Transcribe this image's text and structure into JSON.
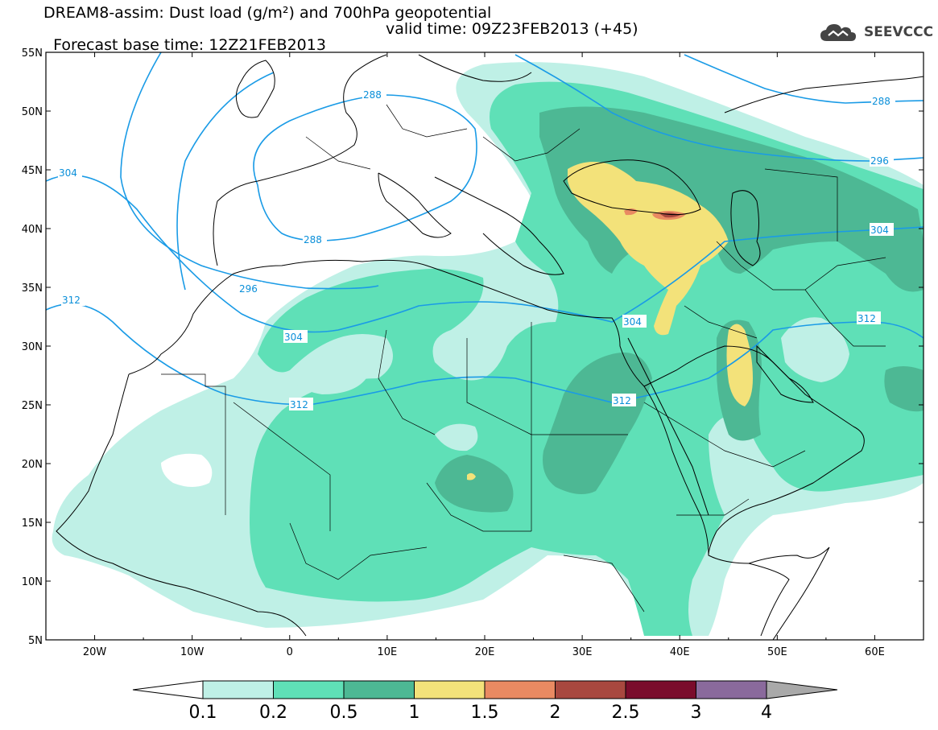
{
  "title": {
    "line1": "DREAM8-assim: Dust load (g/m²) and 700hPa geopotential",
    "line2_left": "Forecast base time: 12Z21FEB2013",
    "line2_right": "valid time: 09Z23FEB2013 (+45)"
  },
  "logo": {
    "text": "SEEVCCC",
    "icon": "cloud-icon"
  },
  "map": {
    "lon_range": [
      -25,
      65
    ],
    "lat_range": [
      5,
      55
    ],
    "lat_ticks": [
      "5N",
      "10N",
      "15N",
      "20N",
      "25N",
      "30N",
      "35N",
      "40N",
      "45N",
      "50N",
      "55N"
    ],
    "lon_ticks": [
      "20W",
      "10W",
      "0",
      "10E",
      "20E",
      "30E",
      "40E",
      "50E",
      "60E"
    ]
  },
  "contours": {
    "color": "#1a9be6",
    "labels": [
      "288",
      "288",
      "288",
      "296",
      "296",
      "304",
      "304",
      "304",
      "304",
      "312",
      "312",
      "312",
      "312"
    ]
  },
  "colorbar": {
    "colors": [
      "#bff0e6",
      "#5fe0b7",
      "#4db894",
      "#f3e27a",
      "#e98a62",
      "#a8483f",
      "#7a0c2c",
      "#8a6a9c",
      "#a9a9a9"
    ],
    "labels": [
      "0.1",
      "0.2",
      "0.5",
      "1",
      "1.5",
      "2",
      "2.5",
      "3",
      "4"
    ]
  }
}
